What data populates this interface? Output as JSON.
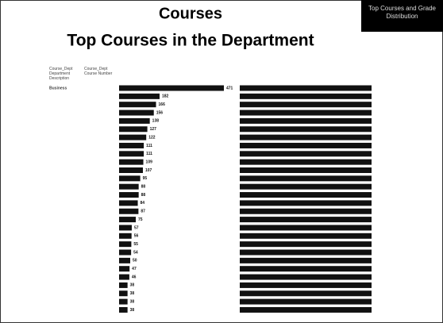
{
  "header": {
    "title": "Courses",
    "subtitle": "Top Courses in the Department",
    "badge": "Top Courses and Grade Distribution"
  },
  "table": {
    "columns": [
      "Course_Dept Department Description",
      "Course_Dept Course Number"
    ],
    "department": "Business"
  },
  "chart_data": {
    "type": "bar",
    "orientation": "horizontal",
    "color": "#111111",
    "categories": [
      null,
      null,
      null,
      null,
      null,
      null,
      null,
      null,
      null,
      null,
      null,
      null,
      null,
      null,
      null,
      null,
      null,
      null,
      null,
      null,
      null,
      null,
      null,
      null,
      null,
      null,
      null,
      null
    ],
    "values": [
      471,
      182,
      166,
      156,
      138,
      127,
      122,
      111,
      111,
      109,
      107,
      95,
      88,
      88,
      84,
      87,
      75,
      57,
      56,
      55,
      54,
      50,
      47,
      46,
      38,
      38,
      38,
      38
    ]
  }
}
